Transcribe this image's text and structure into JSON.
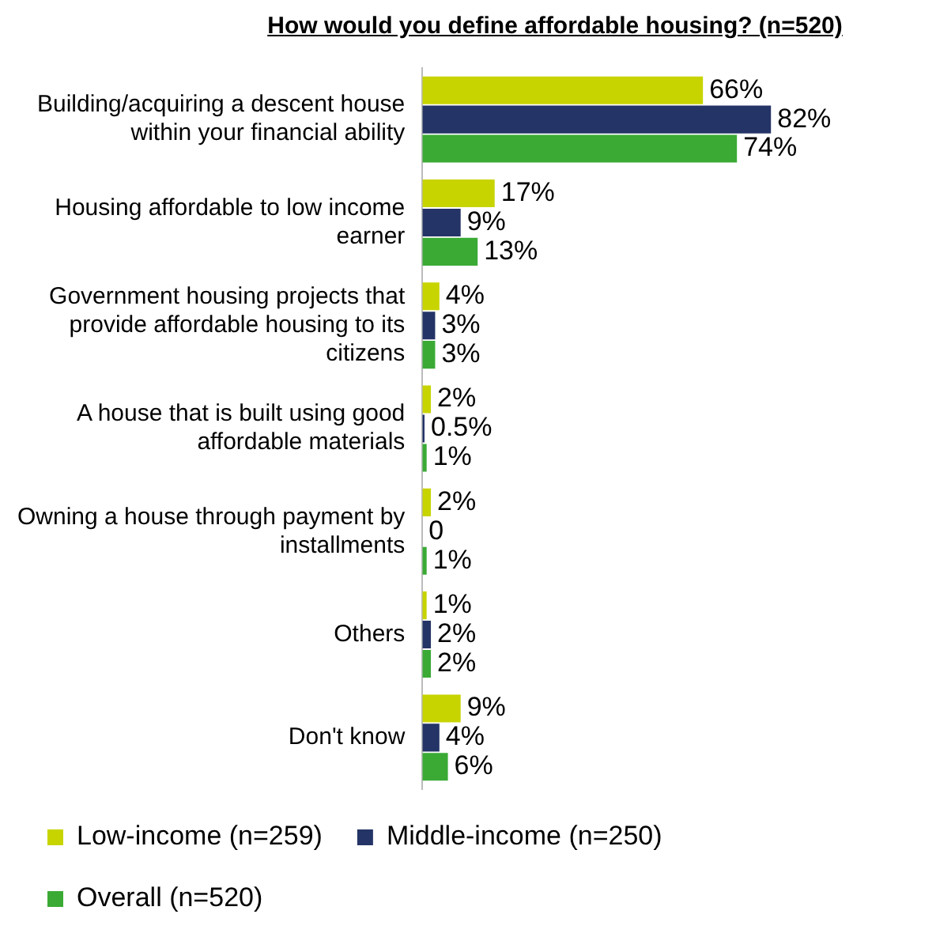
{
  "chart_data": {
    "type": "bar",
    "orientation": "horizontal",
    "title": "How would you define affordable housing? (n=520)",
    "categories": [
      "Building/acquiring a descent house within your financial ability",
      "Housing affordable to low income earner",
      "Government housing projects that provide affordable housing to its citizens",
      "A house that is built using good affordable materials",
      "Owning a house through payment by installments",
      "Others",
      "Don't know"
    ],
    "series": [
      {
        "name": "Low-income (n=259)",
        "color": "#c8d400",
        "values": [
          66,
          17,
          4,
          2,
          2,
          1,
          9
        ],
        "value_labels": [
          "66%",
          "17%",
          "4%",
          "2%",
          "2%",
          "1%",
          "9%"
        ]
      },
      {
        "name": "Middle-income (n=250)",
        "color": "#243466",
        "values": [
          82,
          9,
          3,
          0.5,
          0,
          2,
          4
        ],
        "value_labels": [
          "82%",
          "9%",
          "3%",
          "0.5%",
          "0",
          "2%",
          "4%"
        ]
      },
      {
        "name": "Overall (n=520)",
        "color": "#3aaa35",
        "values": [
          74,
          13,
          3,
          1,
          1,
          2,
          6
        ],
        "value_labels": [
          "74%",
          "13%",
          "3%",
          "1%",
          "1%",
          "2%",
          "6%"
        ]
      }
    ],
    "legend": "bottom"
  }
}
